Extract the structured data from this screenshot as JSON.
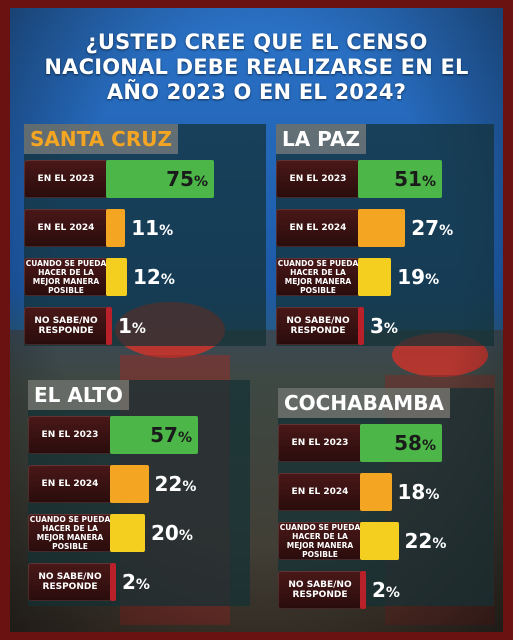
{
  "title": "¿USTED CREE QUE EL CENSO NACIONAL DEBE REALIZARSE EN EL AÑO 2023 O EN EL 2024?",
  "colors": {
    "en_2023": "#4cb748",
    "en_2024": "#f4a623",
    "cuando_se_pueda": "#f5cf1f",
    "no_sabe": "#b8202a",
    "title_santa_cruz": "#f4a623",
    "title_other": "#ffffff"
  },
  "chart_data": [
    {
      "type": "bar",
      "title": "SANTA CRUZ",
      "categories": [
        "EN EL 2023",
        "EN EL 2024",
        "CUANDO SE PUEDA HACER DE LA MEJOR MANERA POSIBLE",
        "NO SABE/NO RESPONDE"
      ],
      "values": [
        75,
        11,
        12,
        1
      ],
      "value_labels": [
        "75",
        "11",
        "12",
        "1"
      ],
      "unit": "%"
    },
    {
      "type": "bar",
      "title": "LA PAZ",
      "categories": [
        "EN EL 2023",
        "EN EL 2024",
        "CUANDO SE PUEDA HACER DE LA MEJOR MANERA POSIBLE",
        "NO SABE/NO RESPONDE"
      ],
      "values": [
        51,
        27,
        19,
        3
      ],
      "value_labels": [
        "51",
        "27",
        "19",
        "3"
      ],
      "unit": "%"
    },
    {
      "type": "bar",
      "title": "EL ALTO",
      "categories": [
        "EN EL 2023",
        "EN EL 2024",
        "CUANDO SE PUEDA HACER DE LA MEJOR MANERA POSIBLE",
        "NO SABE/NO RESPONDE"
      ],
      "values": [
        57,
        22,
        20,
        2
      ],
      "value_labels": [
        "57",
        "22",
        "20",
        "2"
      ],
      "unit": "%"
    },
    {
      "type": "bar",
      "title": "COCHABAMBA",
      "categories": [
        "EN EL 2023",
        "EN EL 2024",
        "CUANDO SE PUEDA HACER DE LA MEJOR MANERA POSIBLE",
        "NO SABE/NO RESPONDE"
      ],
      "values": [
        58,
        18,
        22,
        2
      ],
      "value_labels": [
        "58",
        "18",
        "22",
        "2"
      ],
      "unit": "%"
    }
  ]
}
